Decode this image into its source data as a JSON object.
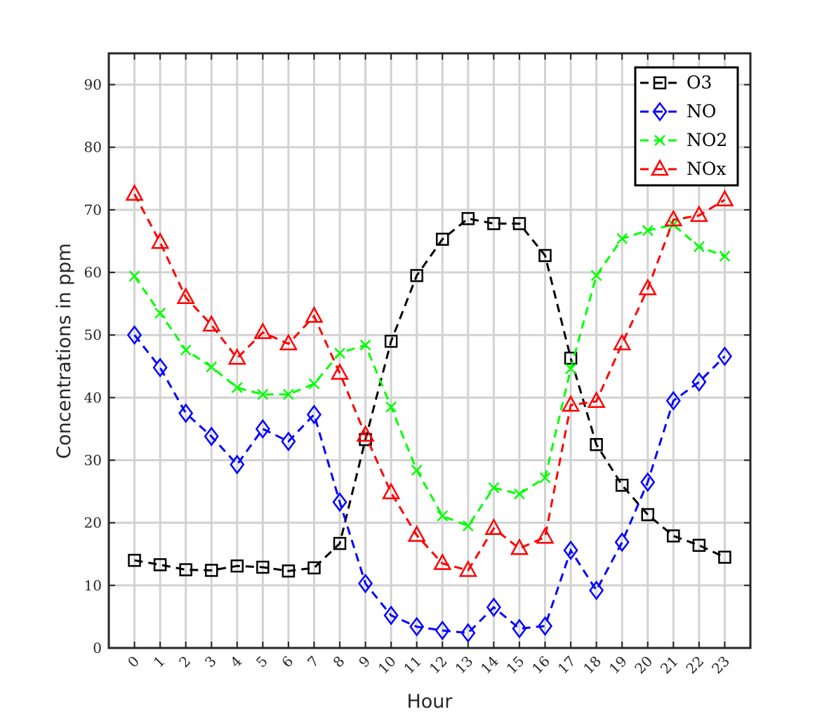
{
  "chart_data": {
    "type": "line",
    "xlabel": "Hour",
    "ylabel": "Concentrations in ppm",
    "x": [
      0,
      1,
      2,
      3,
      4,
      5,
      6,
      7,
      8,
      9,
      10,
      11,
      12,
      13,
      14,
      15,
      16,
      17,
      18,
      19,
      20,
      21,
      22,
      23
    ],
    "x_tick_labels": [
      "0",
      "1",
      "2",
      "3",
      "4",
      "5",
      "6",
      "7",
      "8",
      "9",
      "10",
      "11",
      "12",
      "13",
      "14",
      "15",
      "16",
      "17",
      "18",
      "19",
      "20",
      "21",
      "22",
      "23"
    ],
    "x_range": [
      -1,
      24
    ],
    "ylim": [
      0,
      95
    ],
    "y_ticks": [
      0,
      10,
      20,
      30,
      40,
      50,
      60,
      70,
      80,
      90
    ],
    "y_tick_labels": [
      "0",
      "10",
      "20",
      "30",
      "40",
      "50",
      "60",
      "70",
      "80",
      "90"
    ],
    "grid": true,
    "legend_position": "top-right",
    "series": [
      {
        "name": "O3",
        "color": "#000000",
        "marker": "square",
        "values": [
          14,
          13.3,
          12.5,
          12.4,
          13.1,
          12.9,
          12.3,
          12.8,
          16.7,
          33.3,
          49,
          59.5,
          65.3,
          68.6,
          67.8,
          67.8,
          62.7,
          46.3,
          32.5,
          26,
          21.3,
          17.9,
          16.4,
          14.5
        ]
      },
      {
        "name": "NO",
        "color": "#0000ff",
        "marker": "diamond",
        "values": [
          50,
          44.8,
          37.5,
          33.8,
          29.3,
          35,
          33,
          37.3,
          23.3,
          10.3,
          5.2,
          3.4,
          2.8,
          2.4,
          6.5,
          3.1,
          3.5,
          15.6,
          9.2,
          16.9,
          26.5,
          39.5,
          42.5,
          46.6
        ]
      },
      {
        "name": "NO2",
        "color": "#00ff00",
        "marker": "x",
        "values": [
          59.4,
          53.5,
          47.6,
          44.9,
          41.6,
          40.5,
          40.5,
          42.2,
          47.1,
          48.4,
          38.5,
          28.4,
          21.1,
          19.5,
          25.6,
          24.6,
          27.2,
          44.6,
          59.5,
          65.4,
          66.7,
          67.6,
          64.1,
          62.6
        ]
      },
      {
        "name": "NOx",
        "color": "#ff0000",
        "marker": "triangle",
        "values": [
          72.5,
          64.8,
          56,
          51.6,
          46.3,
          50.4,
          48.6,
          53,
          43.9,
          34,
          24.8,
          18,
          13.5,
          12.4,
          19.1,
          15.9,
          17.7,
          38.8,
          39.4,
          48.6,
          57.4,
          68.4,
          69.1,
          71.6
        ]
      }
    ]
  }
}
